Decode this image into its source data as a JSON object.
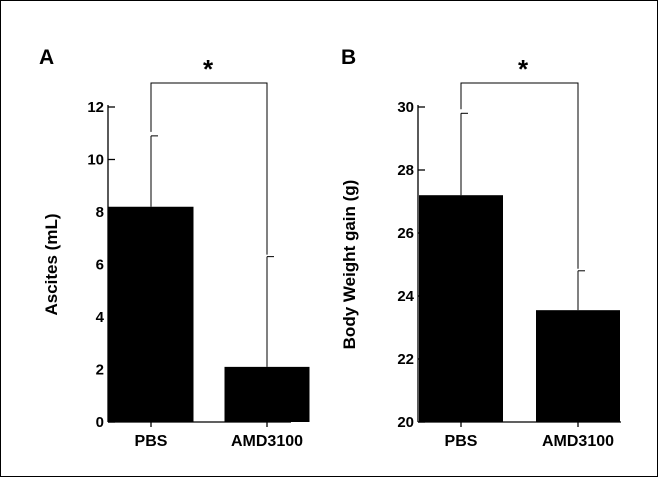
{
  "chart_data": [
    {
      "type": "bar",
      "panel_label": "A",
      "title": "",
      "xlabel": "",
      "ylabel": "Ascites (mL)",
      "ylim": [
        0,
        12
      ],
      "yticks": [
        "0",
        "2",
        "4",
        "6",
        "8",
        "10",
        "12"
      ],
      "categories": [
        "PBS",
        "AMD3100"
      ],
      "values": [
        8.2,
        2.1
      ],
      "error_upper": [
        2.7,
        4.2
      ],
      "significance": "*",
      "bar_color": "#000000",
      "grid": false,
      "legend": "none"
    },
    {
      "type": "bar",
      "panel_label": "B",
      "title": "",
      "xlabel": "",
      "ylabel": "Body Weight gain (g)",
      "ylim": [
        20,
        30
      ],
      "yticks": [
        "20",
        "22",
        "24",
        "26",
        "28",
        "30"
      ],
      "categories": [
        "PBS",
        "AMD3100"
      ],
      "values": [
        27.2,
        23.55
      ],
      "error_upper": [
        2.6,
        1.25
      ],
      "significance": "*",
      "bar_color": "#000000",
      "grid": false,
      "legend": "none"
    }
  ]
}
